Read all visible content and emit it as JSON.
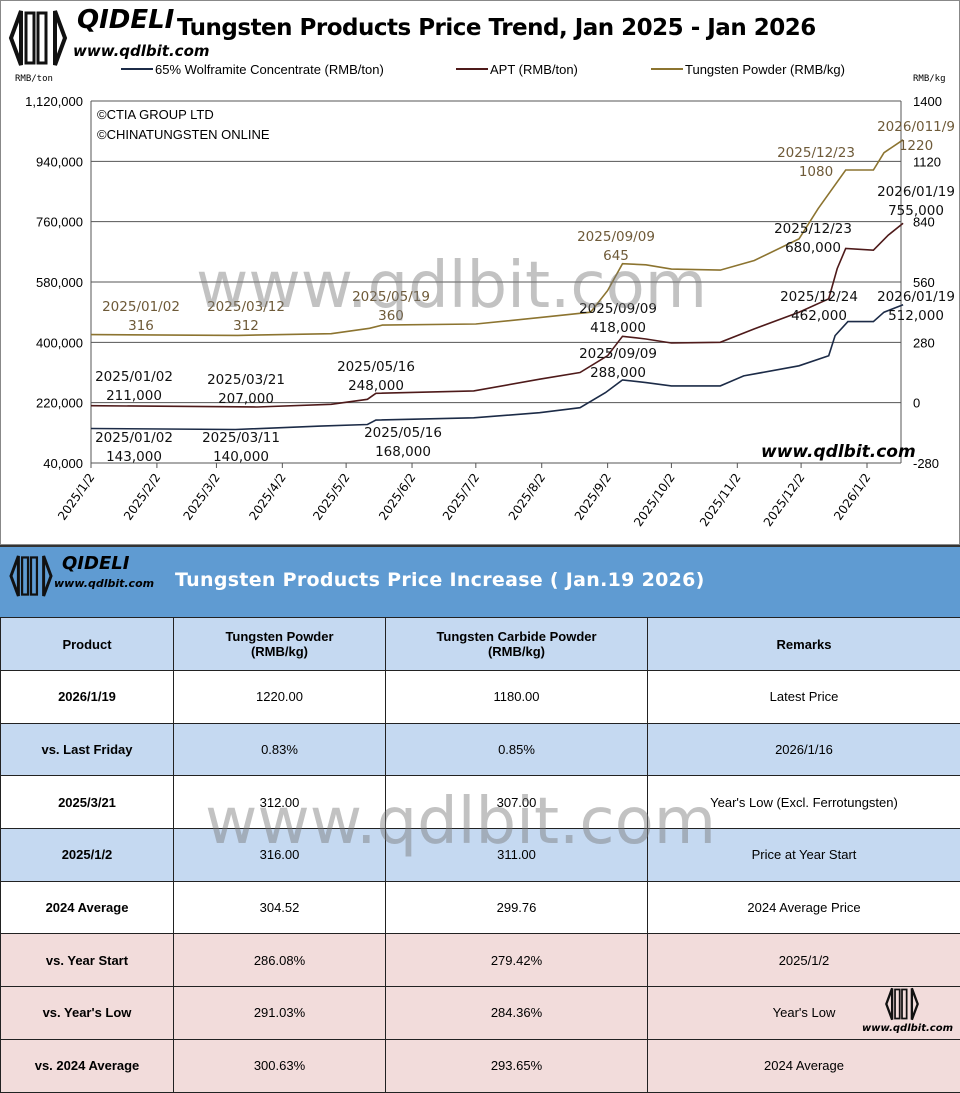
{
  "header": {
    "brand": "QIDELI",
    "website": "www.qdlbit.com",
    "title": "Tungsten Products Price Trend, Jan 2025 - Jan 2026",
    "copyright_1": "©CTIA GROUP LTD",
    "copyright_2": "©CHINATUNGSTEN ONLINE",
    "watermark": "www.qdlbit.com",
    "corner_site": "www.qdlbit.com"
  },
  "chart_data": {
    "type": "line",
    "title": "Tungsten Products Price Trend, Jan 2025 - Jan 2026",
    "y_left_label": "RMB/ton",
    "y_right_label": "RMB/kg",
    "y_left_range": [
      40000,
      1120000
    ],
    "y_left_ticks": [
      "1,120,000",
      "940,000",
      "760,000",
      "580,000",
      "400,000",
      "220,000",
      "40,000"
    ],
    "y_right_range": [
      -280,
      1400
    ],
    "y_right_ticks": [
      "1400",
      "1120",
      "840",
      "560",
      "280",
      "0",
      "-280"
    ],
    "x_range": [
      "2025-01-02",
      "2026-01-19"
    ],
    "x_ticks": [
      "2025/1/2",
      "2025/2/2",
      "2025/3/2",
      "2025/4/2",
      "2025/5/2",
      "2025/6/2",
      "2025/7/2",
      "2025/8/2",
      "2025/9/2",
      "2025/10/2",
      "2025/11/2",
      "2025/12/2",
      "2026/1/2"
    ],
    "grid": true,
    "legend_position": "top",
    "series": [
      {
        "name": "65% Wolframite Concentrate (RMB/ton)",
        "axis": "left",
        "color": "#1c2b47",
        "points": [
          [
            "2025-01-02",
            143000
          ],
          [
            "2025-03-11",
            140000
          ],
          [
            "2025-04-20",
            150000
          ],
          [
            "2025-05-12",
            155000
          ],
          [
            "2025-05-16",
            168000
          ],
          [
            "2025-07-01",
            175000
          ],
          [
            "2025-08-01",
            190000
          ],
          [
            "2025-08-20",
            205000
          ],
          [
            "2025-09-01",
            250000
          ],
          [
            "2025-09-09",
            288000
          ],
          [
            "2025-09-20",
            280000
          ],
          [
            "2025-10-02",
            270000
          ],
          [
            "2025-10-25",
            270000
          ],
          [
            "2025-11-05",
            300000
          ],
          [
            "2025-12-01",
            330000
          ],
          [
            "2025-12-15",
            360000
          ],
          [
            "2025-12-18",
            420000
          ],
          [
            "2025-12-24",
            462000
          ],
          [
            "2026-01-05",
            462000
          ],
          [
            "2026-01-10",
            490000
          ],
          [
            "2026-01-19",
            512000
          ]
        ]
      },
      {
        "name": "APT (RMB/ton)",
        "axis": "left",
        "color": "#4e1a1a",
        "points": [
          [
            "2025-01-02",
            211000
          ],
          [
            "2025-03-21",
            207000
          ],
          [
            "2025-04-25",
            215000
          ],
          [
            "2025-05-12",
            230000
          ],
          [
            "2025-05-16",
            248000
          ],
          [
            "2025-07-01",
            255000
          ],
          [
            "2025-08-01",
            290000
          ],
          [
            "2025-08-20",
            310000
          ],
          [
            "2025-09-02",
            360000
          ],
          [
            "2025-09-09",
            418000
          ],
          [
            "2025-09-20",
            410000
          ],
          [
            "2025-10-02",
            398000
          ],
          [
            "2025-10-25",
            400000
          ],
          [
            "2025-11-10",
            440000
          ],
          [
            "2025-12-01",
            490000
          ],
          [
            "2025-12-15",
            530000
          ],
          [
            "2025-12-19",
            620000
          ],
          [
            "2025-12-23",
            680000
          ],
          [
            "2026-01-05",
            675000
          ],
          [
            "2026-01-12",
            720000
          ],
          [
            "2026-01-19",
            755000
          ]
        ]
      },
      {
        "name": "Tungsten Powder (RMB/kg)",
        "axis": "right",
        "color": "#8c7430",
        "points": [
          [
            "2025-01-02",
            316
          ],
          [
            "2025-03-12",
            312
          ],
          [
            "2025-04-25",
            320
          ],
          [
            "2025-05-13",
            345
          ],
          [
            "2025-05-19",
            360
          ],
          [
            "2025-07-02",
            365
          ],
          [
            "2025-08-01",
            395
          ],
          [
            "2025-08-25",
            420
          ],
          [
            "2025-09-02",
            520
          ],
          [
            "2025-09-09",
            645
          ],
          [
            "2025-09-20",
            640
          ],
          [
            "2025-10-02",
            620
          ],
          [
            "2025-10-25",
            615
          ],
          [
            "2025-11-10",
            660
          ],
          [
            "2025-12-01",
            760
          ],
          [
            "2025-12-10",
            900
          ],
          [
            "2025-12-23",
            1080
          ],
          [
            "2026-01-05",
            1080
          ],
          [
            "2026-01-10",
            1160
          ],
          [
            "2026-01-19",
            1220
          ]
        ]
      }
    ],
    "annotations": [
      {
        "series": 2,
        "lines": [
          "2025/01/02",
          "316"
        ]
      },
      {
        "series": 2,
        "lines": [
          "2025/03/12",
          "312"
        ]
      },
      {
        "series": 2,
        "lines": [
          "2025/05/19",
          "360"
        ]
      },
      {
        "series": 2,
        "lines": [
          "2025/09/09",
          "645"
        ]
      },
      {
        "series": 2,
        "lines": [
          "2025/12/23",
          "1080"
        ]
      },
      {
        "series": 2,
        "lines": [
          "2026/011/9",
          "1220"
        ]
      },
      {
        "series": 1,
        "lines": [
          "2025/01/02",
          "211,000"
        ]
      },
      {
        "series": 1,
        "lines": [
          "2025/03/21",
          "207,000"
        ]
      },
      {
        "series": 1,
        "lines": [
          "2025/05/16",
          "248,000"
        ]
      },
      {
        "series": 1,
        "lines": [
          "2025/09/09",
          "418,000"
        ]
      },
      {
        "series": 1,
        "lines": [
          "2025/12/23",
          "680,000"
        ]
      },
      {
        "series": 1,
        "lines": [
          "2026/01/19",
          "755,000"
        ]
      },
      {
        "series": 0,
        "lines": [
          "2025/01/02",
          "143,000"
        ]
      },
      {
        "series": 0,
        "lines": [
          "2025/03/11",
          "140,000"
        ]
      },
      {
        "series": 0,
        "lines": [
          "2025/05/16",
          "168,000"
        ]
      },
      {
        "series": 0,
        "lines": [
          "2025/09/09",
          "288,000"
        ]
      },
      {
        "series": 0,
        "lines": [
          "2025/12/24",
          "462,000"
        ]
      },
      {
        "series": 0,
        "lines": [
          "2026/01/19",
          "512,000"
        ]
      }
    ]
  },
  "table": {
    "brand": "QIDELI",
    "website": "www.qdlbit.com",
    "title": "Tungsten Products Price Increase ( Jan.19 2026)",
    "watermark": "www.qdlbit.com",
    "corner_site": "www.qdlbit.com",
    "headers": [
      "Product",
      "Tungsten Powder\n(RMB/kg)",
      "Tungsten Carbide Powder\n(RMB/kg)",
      "Remarks"
    ],
    "rows": [
      [
        "2026/1/19",
        "1220.00",
        "1180.00",
        "Latest Price"
      ],
      [
        "vs. Last Friday",
        "0.83%",
        "0.85%",
        "2026/1/16"
      ],
      [
        "2025/3/21",
        "312.00",
        "307.00",
        "Year's Low (Excl. Ferrotungsten)"
      ],
      [
        "2025/1/2",
        "316.00",
        "311.00",
        "Price at Year Start"
      ],
      [
        "2024 Average",
        "304.52",
        "299.76",
        "2024 Average Price"
      ],
      [
        "vs. Year Start",
        "286.08%",
        "279.42%",
        "2025/1/2"
      ],
      [
        "vs. Year's Low",
        "291.03%",
        "284.36%",
        "Year's Low"
      ],
      [
        "vs. 2024 Average",
        "300.63%",
        "293.65%",
        "2024 Average"
      ]
    ],
    "row_colors": {
      "white": "#ffffff",
      "blue": "#c5d9f1",
      "pink": "#f2dcdb",
      "title_band": "#5f9bd2"
    }
  }
}
